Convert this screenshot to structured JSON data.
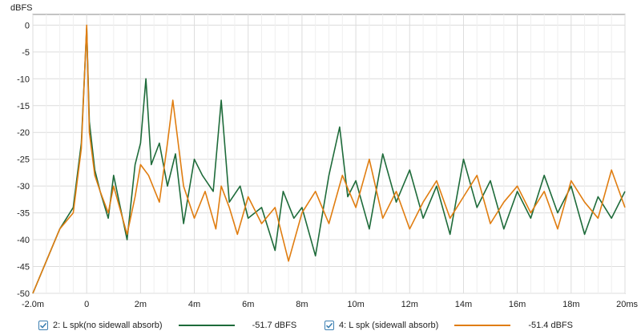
{
  "colors": {
    "series1": "#1e6b3a",
    "series2": "#e07d10",
    "grid": "#dcdcdc",
    "axis": "#888888"
  },
  "legend": [
    {
      "label": "2: L spk(no sidewall absorb)",
      "level": "-51.7 dBFS",
      "checked": true,
      "icon": "checkbox-checked-icon"
    },
    {
      "label": "4: L spk (sidewall absorb)",
      "level": "-51.4 dBFS",
      "checked": true,
      "icon": "checkbox-checked-icon"
    }
  ],
  "chart_data": {
    "type": "line",
    "ylabel": "dBFS",
    "xlim": [
      -2.0,
      20
    ],
    "ylim": [
      -50,
      2
    ],
    "x_ticks": [
      -2,
      0,
      2,
      4,
      6,
      8,
      10,
      12,
      14,
      16,
      18,
      20
    ],
    "x_tick_labels": [
      "-2.0m",
      "0",
      "2m",
      "4m",
      "6m",
      "8m",
      "10m",
      "12m",
      "14m",
      "16m",
      "18m",
      "20ms"
    ],
    "y_ticks": [
      0,
      -5,
      -10,
      -15,
      -20,
      -25,
      -30,
      -35,
      -40,
      -45,
      -50
    ],
    "y_tick_labels": [
      "0",
      "-5",
      "-10",
      "-15",
      "-20",
      "-25",
      "-30",
      "-35",
      "-40",
      "-45",
      "-50"
    ],
    "grid": true,
    "legend_position": "bottom",
    "series": [
      {
        "name": "2: L spk(no sidewall absorb)",
        "x": [
          -2.0,
          -1.5,
          -1.0,
          -0.5,
          -0.2,
          0.0,
          0.1,
          0.3,
          0.5,
          0.8,
          1.0,
          1.5,
          1.8,
          2.0,
          2.2,
          2.4,
          2.7,
          3.0,
          3.3,
          3.6,
          4.0,
          4.3,
          4.7,
          5.0,
          5.3,
          5.7,
          6.0,
          6.5,
          7.0,
          7.3,
          7.7,
          8.0,
          8.5,
          9.0,
          9.4,
          9.7,
          10.0,
          10.5,
          11.0,
          11.5,
          12.0,
          12.5,
          13.0,
          13.5,
          14.0,
          14.5,
          15.0,
          15.5,
          16.0,
          16.5,
          17.0,
          17.5,
          18.0,
          18.5,
          19.0,
          19.5,
          20.0
        ],
        "y": [
          -50,
          -44,
          -38,
          -34,
          -22,
          -0.5,
          -18,
          -27,
          -31,
          -36,
          -28,
          -40,
          -26,
          -22,
          -10,
          -26,
          -22,
          -30,
          -24,
          -37,
          -25,
          -28,
          -31,
          -14,
          -33,
          -30,
          -36,
          -34,
          -42,
          -31,
          -36,
          -34,
          -43,
          -28,
          -19,
          -32,
          -29,
          -38,
          -24,
          -33,
          -27,
          -36,
          -30,
          -39,
          -25,
          -34,
          -29,
          -38,
          -31,
          -36,
          -28,
          -35,
          -30,
          -39,
          -32,
          -36,
          -31
        ]
      },
      {
        "name": "4: L spk (sidewall absorb)",
        "x": [
          -2.0,
          -1.5,
          -1.0,
          -0.5,
          -0.2,
          0.0,
          0.1,
          0.3,
          0.5,
          0.8,
          1.0,
          1.5,
          1.8,
          2.0,
          2.3,
          2.7,
          3.0,
          3.2,
          3.6,
          4.0,
          4.4,
          4.8,
          5.0,
          5.3,
          5.6,
          6.0,
          6.5,
          7.0,
          7.5,
          8.0,
          8.5,
          9.0,
          9.5,
          10.0,
          10.5,
          11.0,
          11.5,
          12.0,
          12.5,
          13.0,
          13.5,
          14.0,
          14.5,
          15.0,
          15.5,
          16.0,
          16.5,
          17.0,
          17.5,
          18.0,
          18.5,
          19.0,
          19.5,
          20.0
        ],
        "y": [
          -50,
          -44,
          -38,
          -35,
          -23,
          0,
          -20,
          -28,
          -31,
          -35,
          -30,
          -39,
          -32,
          -26,
          -28,
          -33,
          -22,
          -14,
          -30,
          -36,
          -31,
          -38,
          -30,
          -34,
          -39,
          -32,
          -37,
          -34,
          -44,
          -35,
          -31,
          -37,
          -28,
          -34,
          -25,
          -36,
          -31,
          -38,
          -33,
          -29,
          -36,
          -32,
          -28,
          -37,
          -33,
          -30,
          -35,
          -31,
          -38,
          -29,
          -33,
          -36,
          -27,
          -34
        ]
      }
    ]
  }
}
